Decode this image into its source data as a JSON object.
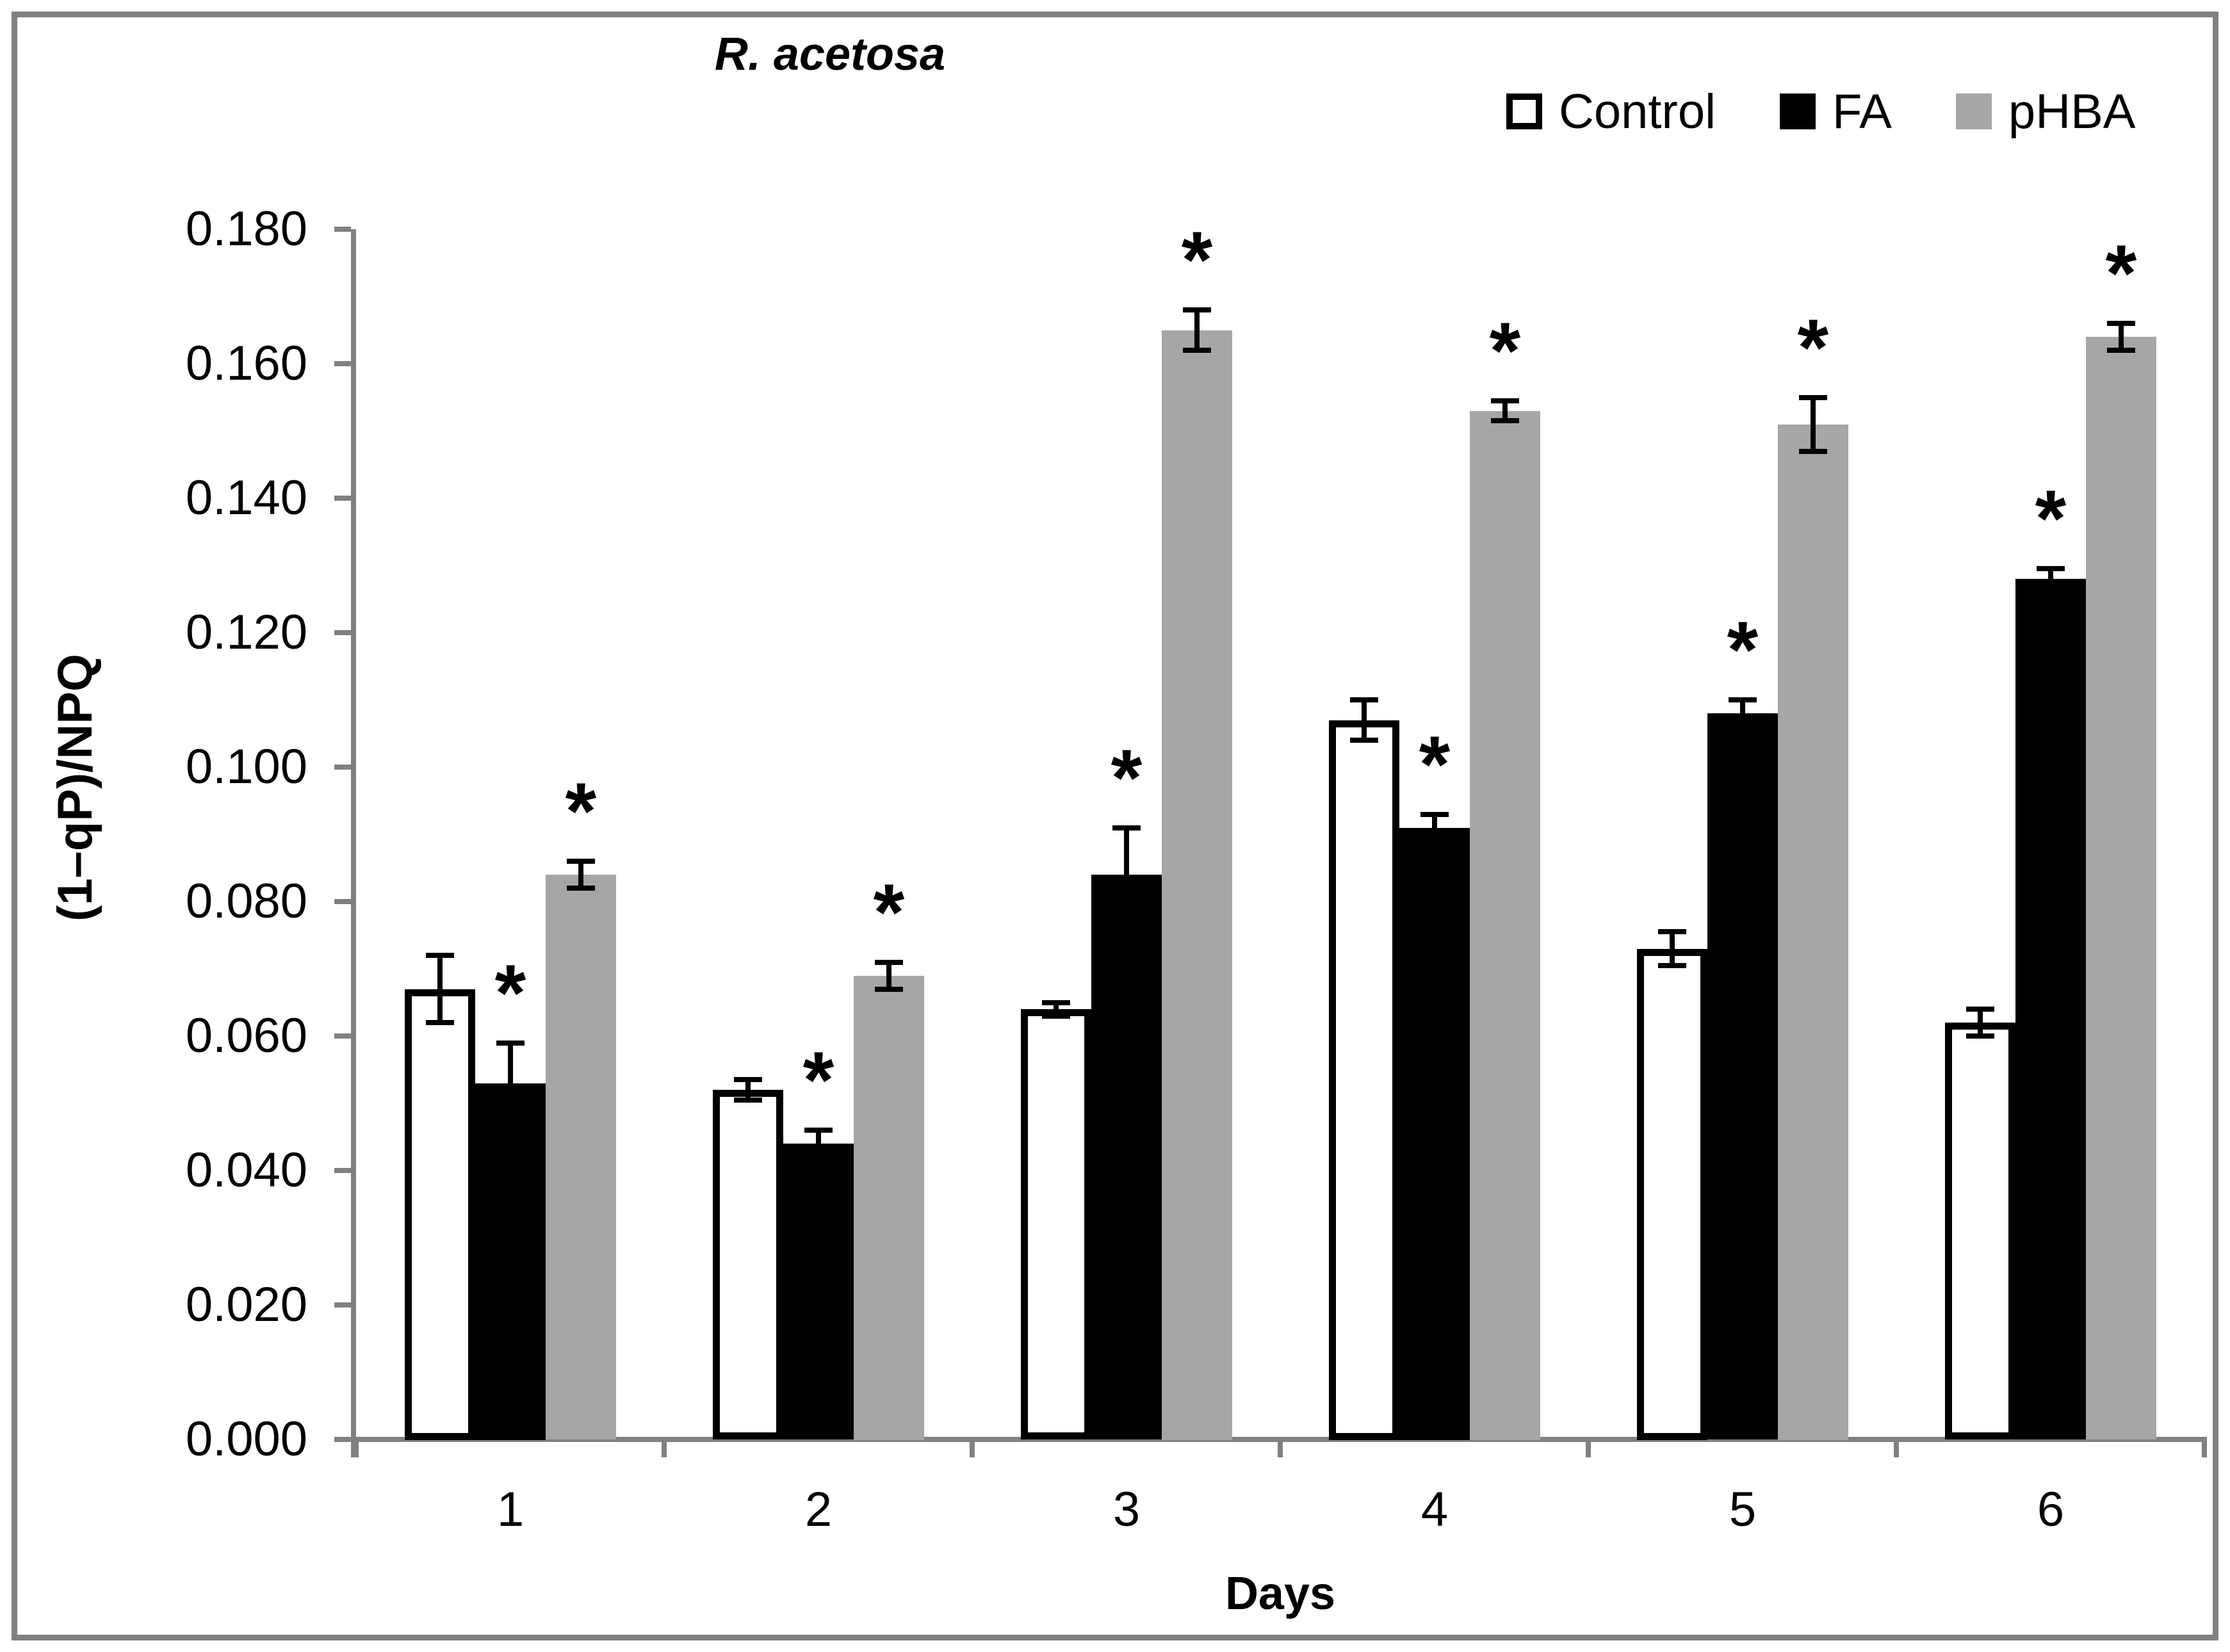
{
  "figure": {
    "title": "R. acetosa",
    "xlabel": "Days",
    "ylabel": "(1–qP)/NPQ"
  },
  "chart_data": {
    "type": "bar",
    "title": "R. acetosa",
    "xlabel": "Days",
    "ylabel": "(1–qP)/NPQ",
    "ylim": [
      0,
      0.18
    ],
    "ytick_step": 0.02,
    "ytick_labels": [
      "0.000",
      "0.020",
      "0.040",
      "0.060",
      "0.080",
      "0.100",
      "0.120",
      "0.140",
      "0.160",
      "0.180"
    ],
    "categories": [
      "1",
      "2",
      "3",
      "4",
      "5",
      "6"
    ],
    "grid": false,
    "legend_position": "top-right",
    "error_bars": true,
    "significance_marker": "*",
    "series": [
      {
        "name": "Control",
        "fill": "#FFFFFF",
        "border": "#000000",
        "values": [
          0.067,
          0.052,
          0.064,
          0.107,
          0.073,
          0.062
        ],
        "errors": [
          0.005,
          0.0015,
          0.001,
          0.003,
          0.0025,
          0.002
        ],
        "significant": [
          false,
          false,
          false,
          false,
          false,
          false
        ]
      },
      {
        "name": "FA",
        "fill": "#000000",
        "border": "#000000",
        "values": [
          0.053,
          0.044,
          0.084,
          0.091,
          0.108,
          0.128
        ],
        "errors": [
          0.006,
          0.002,
          0.007,
          0.002,
          0.002,
          0.0015
        ],
        "significant": [
          true,
          true,
          true,
          true,
          true,
          true
        ]
      },
      {
        "name": "pHBA",
        "fill": "#A6A6A6",
        "border": "#A6A6A6",
        "values": [
          0.084,
          0.069,
          0.165,
          0.153,
          0.151,
          0.164
        ],
        "errors": [
          0.002,
          0.002,
          0.003,
          0.0015,
          0.004,
          0.002
        ],
        "significant": [
          true,
          true,
          true,
          true,
          true,
          true
        ]
      }
    ],
    "colors": {
      "axis": "#808080",
      "frame": "#808080",
      "error": "#000000",
      "marker": "#000000"
    }
  }
}
